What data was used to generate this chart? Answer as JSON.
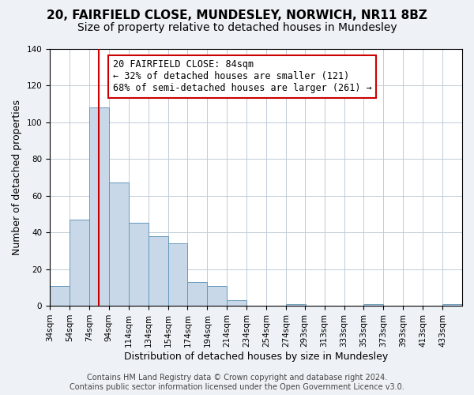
{
  "title": "20, FAIRFIELD CLOSE, MUNDESLEY, NORWICH, NR11 8BZ",
  "subtitle": "Size of property relative to detached houses in Mundesley",
  "xlabel": "Distribution of detached houses by size in Mundesley",
  "ylabel": "Number of detached properties",
  "bar_heights": [
    11,
    47,
    108,
    67,
    45,
    38,
    34,
    13,
    11,
    3,
    0,
    0,
    1,
    0,
    0,
    0,
    1,
    0,
    0,
    0,
    1
  ],
  "bin_labels": [
    "34sqm",
    "54sqm",
    "74sqm",
    "94sqm",
    "114sqm",
    "134sqm",
    "154sqm",
    "174sqm",
    "194sqm",
    "214sqm",
    "234sqm",
    "254sqm",
    "274sqm",
    "293sqm",
    "313sqm",
    "333sqm",
    "353sqm",
    "373sqm",
    "393sqm",
    "413sqm",
    "433sqm"
  ],
  "bin_left_edges": [
    34,
    54,
    74,
    94,
    114,
    134,
    154,
    174,
    194,
    214,
    234,
    254,
    274,
    293,
    313,
    333,
    353,
    373,
    393,
    413,
    433
  ],
  "bin_width": 20,
  "bar_color": "#c8d8e8",
  "bar_edge_color": "#6699bb",
  "vline_x": 84,
  "vline_color": "#cc0000",
  "ylim": [
    0,
    140
  ],
  "yticks": [
    0,
    20,
    40,
    60,
    80,
    100,
    120,
    140
  ],
  "annotation_title": "20 FAIRFIELD CLOSE: 84sqm",
  "annotation_line1": "← 32% of detached houses are smaller (121)",
  "annotation_line2": "68% of semi-detached houses are larger (261) →",
  "annotation_box_color": "#ffffff",
  "annotation_box_edge_color": "#cc0000",
  "footer_line1": "Contains HM Land Registry data © Crown copyright and database right 2024.",
  "footer_line2": "Contains public sector information licensed under the Open Government Licence v3.0.",
  "title_fontsize": 11,
  "subtitle_fontsize": 10,
  "axis_label_fontsize": 9,
  "tick_fontsize": 7.5,
  "annotation_fontsize": 8.5,
  "footer_fontsize": 7,
  "background_color": "#eef2f6",
  "plot_background_color": "#ffffff",
  "grid_color": "#c0ccd8"
}
